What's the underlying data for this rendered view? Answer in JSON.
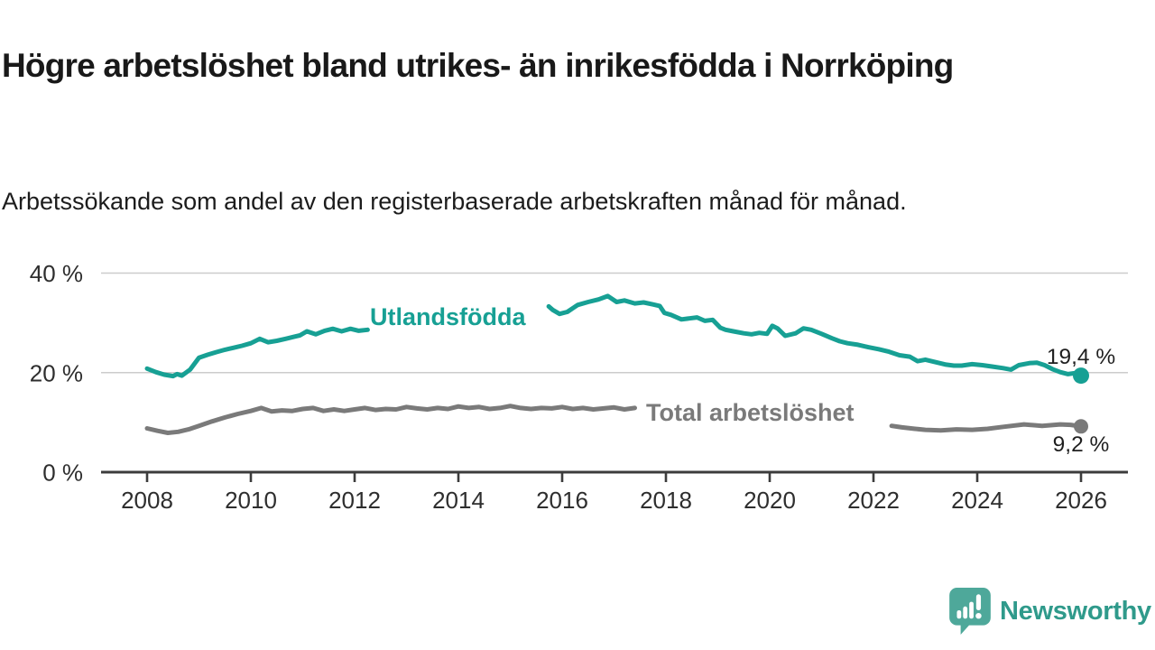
{
  "header": {
    "title": "Högre arbetslöshet bland utrikes- än inrikesfödda i Norrköping",
    "subtitle": "Arbetssökande som andel av den registerbaserade arbetskraften månad för månad."
  },
  "chart_data": {
    "type": "line",
    "title": "Högre arbetslöshet bland utrikes- än inrikesfödda i Norrköping",
    "subtitle": "Arbetssökande som andel av den registerbaserade arbetskraften månad för månad.",
    "grid": "horizontal",
    "legend_position": "inline-labels-on-lines",
    "x_axis": {
      "ticks": [
        2008,
        2010,
        2012,
        2014,
        2016,
        2018,
        2020,
        2022,
        2024,
        2026
      ],
      "tick_labels": [
        "2008",
        "2010",
        "2012",
        "2014",
        "2016",
        "2018",
        "2020",
        "2022",
        "2024",
        "2026"
      ],
      "range": [
        2007.1,
        2026.9
      ]
    },
    "y_axis": {
      "ticks": [
        0,
        20,
        40
      ],
      "tick_labels": [
        "0 %",
        "20 %",
        "40 %"
      ],
      "range": [
        0,
        40
      ],
      "unit": "%"
    },
    "series": [
      {
        "name": "Utlandsfödda",
        "color": "#17a094",
        "end_value": 19.4,
        "end_label": "19,4 %",
        "segments": [
          [
            [
              2008,
              20.8
            ],
            [
              2008.17,
              20.1
            ],
            [
              2008.33,
              19.6
            ],
            [
              2008.5,
              19.3
            ],
            [
              2008.58,
              19.7
            ],
            [
              2008.67,
              19.4
            ],
            [
              2008.83,
              20.6
            ],
            [
              2009,
              23
            ],
            [
              2009.17,
              23.6
            ],
            [
              2009.33,
              24.1
            ],
            [
              2009.5,
              24.6
            ],
            [
              2009.67,
              25
            ],
            [
              2009.83,
              25.4
            ],
            [
              2010,
              25.9
            ],
            [
              2010.17,
              26.8
            ],
            [
              2010.33,
              26.1
            ],
            [
              2010.5,
              26.4
            ],
            [
              2010.67,
              26.8
            ],
            [
              2010.83,
              27.2
            ],
            [
              2010.95,
              27.5
            ],
            [
              2011.08,
              28.3
            ],
            [
              2011.25,
              27.7
            ],
            [
              2011.42,
              28.4
            ],
            [
              2011.58,
              28.8
            ],
            [
              2011.75,
              28.3
            ],
            [
              2011.92,
              28.8
            ],
            [
              2012.08,
              28.4
            ],
            [
              2012.25,
              28.6
            ]
          ],
          [
            [
              2015.74,
              33.3
            ],
            [
              2015.82,
              32.6
            ],
            [
              2015.95,
              31.8
            ],
            [
              2016.1,
              32.2
            ],
            [
              2016.3,
              33.6
            ],
            [
              2016.5,
              34.2
            ],
            [
              2016.7,
              34.7
            ],
            [
              2016.88,
              35.4
            ],
            [
              2017.05,
              34.2
            ],
            [
              2017.2,
              34.5
            ],
            [
              2017.4,
              33.9
            ],
            [
              2017.57,
              34.1
            ],
            [
              2017.75,
              33.7
            ],
            [
              2017.88,
              33.4
            ],
            [
              2017.97,
              32
            ],
            [
              2018.1,
              31.6
            ],
            [
              2018.3,
              30.7
            ],
            [
              2018.45,
              30.9
            ],
            [
              2018.6,
              31.1
            ],
            [
              2018.75,
              30.4
            ],
            [
              2018.9,
              30.6
            ],
            [
              2019.05,
              29
            ],
            [
              2019.15,
              28.6
            ],
            [
              2019.3,
              28.3
            ],
            [
              2019.5,
              27.9
            ],
            [
              2019.65,
              27.7
            ],
            [
              2019.8,
              28
            ],
            [
              2019.95,
              27.8
            ],
            [
              2020.05,
              29.4
            ],
            [
              2020.15,
              28.9
            ],
            [
              2020.3,
              27.4
            ],
            [
              2020.5,
              27.9
            ],
            [
              2020.65,
              28.9
            ],
            [
              2020.8,
              28.6
            ],
            [
              2021,
              27.8
            ],
            [
              2021.2,
              26.9
            ],
            [
              2021.35,
              26.3
            ],
            [
              2021.5,
              25.9
            ],
            [
              2021.7,
              25.6
            ],
            [
              2021.9,
              25.1
            ],
            [
              2022.1,
              24.7
            ],
            [
              2022.3,
              24.2
            ],
            [
              2022.5,
              23.5
            ],
            [
              2022.7,
              23.2
            ],
            [
              2022.85,
              22.3
            ],
            [
              2023,
              22.6
            ],
            [
              2023.2,
              22.1
            ],
            [
              2023.4,
              21.6
            ],
            [
              2023.55,
              21.4
            ],
            [
              2023.7,
              21.4
            ],
            [
              2023.9,
              21.7
            ],
            [
              2024.1,
              21.5
            ],
            [
              2024.3,
              21.2
            ],
            [
              2024.5,
              20.9
            ],
            [
              2024.65,
              20.6
            ],
            [
              2024.8,
              21.5
            ],
            [
              2025,
              21.9
            ],
            [
              2025.15,
              22
            ],
            [
              2025.3,
              21.5
            ],
            [
              2025.45,
              20.7
            ],
            [
              2025.6,
              20.1
            ],
            [
              2025.75,
              19.7
            ],
            [
              2025.88,
              19.9
            ],
            [
              2026,
              19.4
            ]
          ]
        ]
      },
      {
        "name": "Total arbetslöshet",
        "color": "#7a7a7a",
        "end_value": 9.2,
        "end_label": "9,2 %",
        "segments": [
          [
            [
              2008,
              8.8
            ],
            [
              2008.2,
              8.3
            ],
            [
              2008.4,
              7.9
            ],
            [
              2008.6,
              8.1
            ],
            [
              2008.8,
              8.6
            ],
            [
              2009,
              9.3
            ],
            [
              2009.25,
              10.2
            ],
            [
              2009.5,
              11
            ],
            [
              2009.75,
              11.7
            ],
            [
              2010,
              12.3
            ],
            [
              2010.2,
              12.9
            ],
            [
              2010.4,
              12.2
            ],
            [
              2010.6,
              12.4
            ],
            [
              2010.8,
              12.3
            ],
            [
              2011,
              12.7
            ],
            [
              2011.2,
              12.9
            ],
            [
              2011.4,
              12.3
            ],
            [
              2011.6,
              12.6
            ],
            [
              2011.8,
              12.3
            ],
            [
              2012,
              12.6
            ],
            [
              2012.2,
              12.9
            ],
            [
              2012.4,
              12.5
            ],
            [
              2012.6,
              12.7
            ],
            [
              2012.8,
              12.6
            ],
            [
              2013,
              13.1
            ],
            [
              2013.2,
              12.8
            ],
            [
              2013.4,
              12.6
            ],
            [
              2013.6,
              12.9
            ],
            [
              2013.8,
              12.7
            ],
            [
              2014,
              13.2
            ],
            [
              2014.2,
              12.9
            ],
            [
              2014.4,
              13.1
            ],
            [
              2014.6,
              12.7
            ],
            [
              2014.8,
              12.9
            ],
            [
              2015,
              13.3
            ],
            [
              2015.2,
              12.9
            ],
            [
              2015.4,
              12.7
            ],
            [
              2015.6,
              12.9
            ],
            [
              2015.8,
              12.8
            ],
            [
              2016,
              13.1
            ],
            [
              2016.2,
              12.7
            ],
            [
              2016.4,
              12.9
            ],
            [
              2016.6,
              12.6
            ],
            [
              2016.8,
              12.8
            ],
            [
              2017,
              13
            ],
            [
              2017.2,
              12.6
            ],
            [
              2017.4,
              12.9
            ]
          ],
          [
            [
              2022.35,
              9.3
            ],
            [
              2022.55,
              9
            ],
            [
              2022.8,
              8.7
            ],
            [
              2023,
              8.5
            ],
            [
              2023.3,
              8.4
            ],
            [
              2023.6,
              8.6
            ],
            [
              2023.9,
              8.5
            ],
            [
              2024.2,
              8.7
            ],
            [
              2024.5,
              9.1
            ],
            [
              2024.9,
              9.6
            ],
            [
              2025.25,
              9.3
            ],
            [
              2025.6,
              9.6
            ],
            [
              2025.8,
              9.5
            ],
            [
              2026,
              9.2
            ]
          ]
        ]
      }
    ],
    "colors": {
      "series_utlandsfodda": "#17a094",
      "series_total": "#7a7a7a",
      "gridline": "#cccccc",
      "axis": "#3c3c3c",
      "text": "#1f1f1f"
    }
  },
  "branding": {
    "logo_text": "Newsworthy",
    "logo_icon": "speech-bubble-bar-chart-exclamation",
    "logo_color": "#4ea89a",
    "logo_text_color": "#2f9a8b"
  }
}
